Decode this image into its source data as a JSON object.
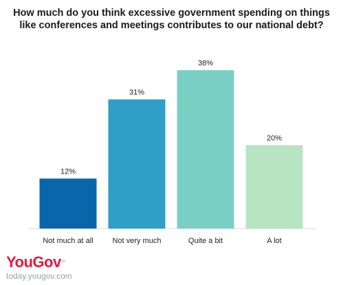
{
  "chart_data": {
    "type": "bar",
    "title_lines": [
      "How much do you think excessive government spending on things",
      "like conferences and meetings contributes to our national debt?"
    ],
    "categories": [
      "Not much at all",
      "Not very much",
      "Quite a bit",
      "A lot"
    ],
    "values": [
      12,
      31,
      38,
      20
    ],
    "value_labels": [
      "12%",
      "31%",
      "38%",
      "20%"
    ],
    "colors": [
      "#0a66aa",
      "#2f9fc7",
      "#7acfc4",
      "#b7e5c1"
    ],
    "ylim": [
      0,
      38
    ],
    "grid": false,
    "legend": "none"
  },
  "footer": {
    "brand": "YouGov",
    "brand_color": "#e8173c",
    "trademark": "®",
    "site": "today.yougov.com"
  }
}
